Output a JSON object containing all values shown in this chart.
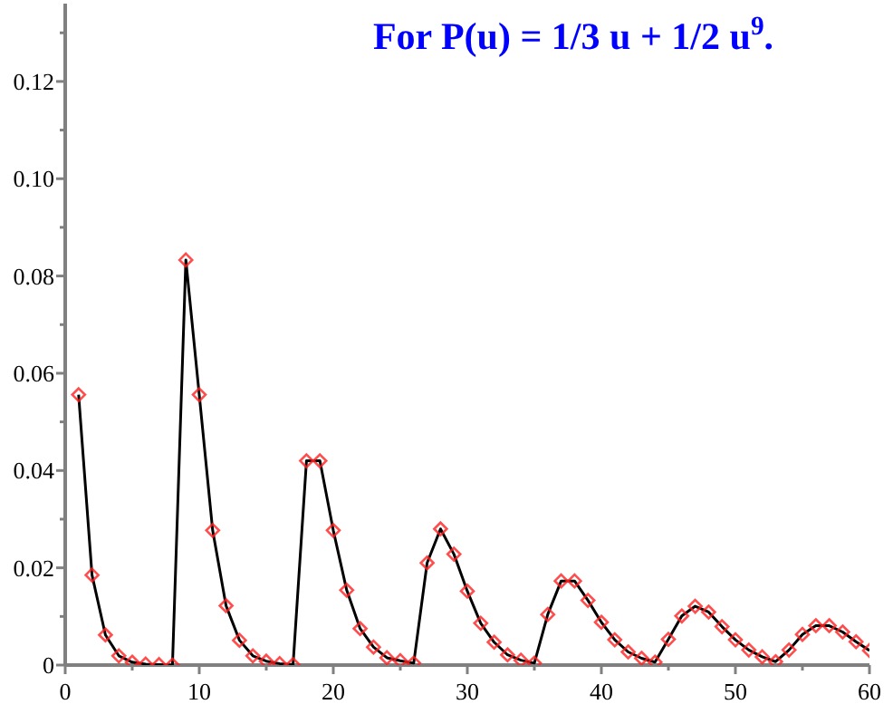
{
  "chart_data": {
    "type": "line",
    "title": "For P(u) = 1/3 u + 1/2 u$^{9}$.",
    "x": [
      1,
      2,
      3,
      4,
      5,
      6,
      7,
      8,
      9,
      10,
      11,
      12,
      13,
      14,
      15,
      16,
      17,
      18,
      19,
      20,
      21,
      22,
      23,
      24,
      25,
      26,
      27,
      28,
      29,
      30,
      31,
      32,
      33,
      34,
      35,
      36,
      37,
      38,
      39,
      40,
      41,
      42,
      43,
      44,
      45,
      46,
      47,
      48,
      49,
      50,
      51,
      52,
      53,
      54,
      55,
      56,
      57,
      58,
      59,
      60
    ],
    "series": [
      {
        "color": "#000000",
        "values": [
          0.0556,
          0.0185,
          0.0062,
          0.0019,
          0.0006,
          0.0002,
          0.0001,
          0.0,
          0.0833,
          0.0556,
          0.0277,
          0.0122,
          0.0051,
          0.0019,
          0.0008,
          0.0003,
          0.0001,
          0.042,
          0.042,
          0.0277,
          0.0154,
          0.0075,
          0.0037,
          0.0015,
          0.0009,
          0.0004,
          0.021,
          0.028,
          0.0228,
          0.0152,
          0.0086,
          0.0047,
          0.0021,
          0.001,
          0.0004,
          0.0104,
          0.0173,
          0.0173,
          0.0133,
          0.0088,
          0.0052,
          0.0027,
          0.0014,
          0.0006,
          0.0053,
          0.0101,
          0.0121,
          0.0109,
          0.0079,
          0.0052,
          0.0031,
          0.0017,
          0.0007,
          0.0031,
          0.0063,
          0.0081,
          0.0081,
          0.0068,
          0.0048,
          0.003
        ]
      }
    ],
    "marker": "diamond",
    "xlim": [
      0,
      60
    ],
    "xticks": [
      0,
      {
        "value": 5,
        "label": null
      },
      10,
      {
        "value": 15,
        "label": null
      },
      20,
      {
        "value": 25,
        "label": null
      },
      30,
      {
        "value": 35,
        "label": null
      },
      40,
      {
        "value": 45,
        "label": null
      },
      50,
      {
        "value": 55,
        "label": null
      },
      60
    ],
    "ylim": [
      0,
      0.136
    ],
    "yticks": [
      0,
      {
        "value": 0.01,
        "label": null
      },
      {
        "value": 0.02,
        "label": "0.02"
      },
      {
        "value": 0.03,
        "label": null
      },
      {
        "value": 0.04,
        "label": "0.04"
      },
      {
        "value": 0.05,
        "label": null
      },
      {
        "value": 0.06,
        "label": "0.06"
      },
      {
        "value": 0.07,
        "label": null
      },
      {
        "value": 0.08,
        "label": "0.08"
      },
      {
        "value": 0.09,
        "label": null
      },
      {
        "value": 0.1,
        "label": "0.10"
      },
      {
        "value": 0.11,
        "label": null
      },
      {
        "value": 0.12,
        "label": "0.12"
      },
      {
        "value": 0.13,
        "label": null
      }
    ]
  }
}
